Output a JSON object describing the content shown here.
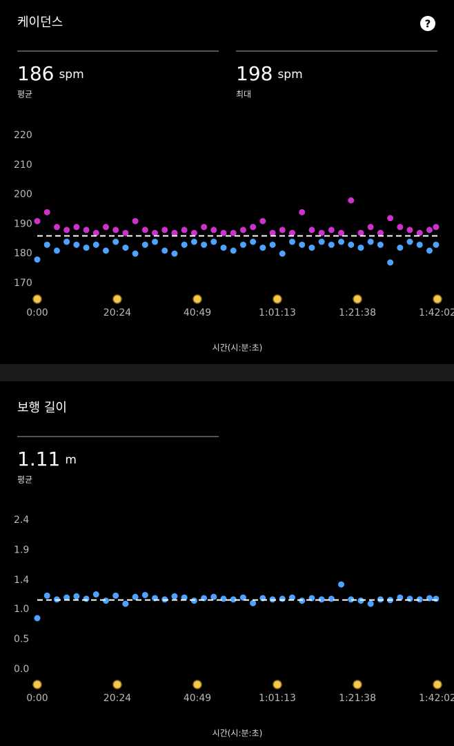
{
  "help_icon": "?",
  "chart_data": [
    {
      "type": "scatter",
      "title": "케이던스",
      "stats": [
        {
          "value": 186,
          "unit": "spm",
          "label": "평균"
        },
        {
          "value": 198,
          "unit": "spm",
          "label": "최대"
        }
      ],
      "average_line": true,
      "xlabel": "시간(시:분:초)",
      "xlim": [
        0,
        6122
      ],
      "xticks": [
        {
          "value": 0,
          "label": "0:00"
        },
        {
          "value": 1224,
          "label": "20:24"
        },
        {
          "value": 2449,
          "label": "40:49"
        },
        {
          "value": 3673,
          "label": "1:01:13"
        },
        {
          "value": 4898,
          "label": "1:21:38"
        },
        {
          "value": 6122,
          "label": "1:42:02"
        }
      ],
      "ylim": [
        167,
        222
      ],
      "yticks": [
        170,
        180,
        190,
        200,
        210,
        220
      ],
      "x": [
        0,
        150,
        300,
        450,
        600,
        750,
        900,
        1050,
        1200,
        1350,
        1500,
        1650,
        1800,
        1950,
        2100,
        2250,
        2400,
        2550,
        2700,
        2850,
        3000,
        3150,
        3300,
        3450,
        3600,
        3750,
        3900,
        4050,
        4200,
        4350,
        4500,
        4650,
        4800,
        4950,
        5100,
        5250,
        5400,
        5550,
        5700,
        5850,
        6000,
        6100
      ],
      "series": [
        {
          "color": "#4da3ff",
          "values": [
            178,
            183,
            181,
            184,
            183,
            182,
            183,
            181,
            184,
            182,
            180,
            183,
            184,
            181,
            180,
            183,
            184,
            183,
            184,
            182,
            181,
            183,
            184,
            182,
            183,
            180,
            184,
            183,
            182,
            184,
            183,
            184,
            183,
            182,
            184,
            183,
            177,
            182,
            184,
            183,
            181,
            183
          ]
        },
        {
          "color": "#cc33cc",
          "values": [
            191,
            194,
            189,
            188,
            189,
            188,
            187,
            189,
            188,
            187,
            191,
            188,
            187,
            188,
            187,
            188,
            187,
            189,
            188,
            187,
            187,
            188,
            189,
            191,
            187,
            188,
            187,
            194,
            188,
            187,
            188,
            187,
            198,
            187,
            189,
            187,
            192,
            189,
            188,
            187,
            188,
            189
          ]
        }
      ]
    },
    {
      "type": "scatter",
      "title": "보행 길이",
      "stats": [
        {
          "value": 1.11,
          "unit": "m",
          "label": "평균"
        }
      ],
      "average_line": true,
      "xlabel": "시간(시:분:초)",
      "xlim": [
        0,
        6122
      ],
      "xticks": [
        {
          "value": 0,
          "label": "0:00"
        },
        {
          "value": 1224,
          "label": "20:24"
        },
        {
          "value": 2449,
          "label": "40:49"
        },
        {
          "value": 3673,
          "label": "1:01:13"
        },
        {
          "value": 4898,
          "label": "1:21:38"
        },
        {
          "value": 6122,
          "label": "1:42:02"
        }
      ],
      "ylim": [
        -0.05,
        2.45
      ],
      "yticks": [
        {
          "value": 0,
          "label": "0.0"
        },
        {
          "value": 0.48,
          "label": "0.5"
        },
        {
          "value": 0.96,
          "label": "1.0"
        },
        {
          "value": 1.43,
          "label": "1.4"
        },
        {
          "value": 1.91,
          "label": "1.9"
        },
        {
          "value": 2.39,
          "label": "2.4"
        }
      ],
      "x": [
        0,
        150,
        300,
        450,
        600,
        750,
        900,
        1050,
        1200,
        1350,
        1500,
        1650,
        1800,
        1950,
        2100,
        2250,
        2400,
        2550,
        2700,
        2850,
        3000,
        3150,
        3300,
        3450,
        3600,
        3750,
        3900,
        4050,
        4200,
        4350,
        4500,
        4650,
        4800,
        4950,
        5100,
        5250,
        5400,
        5550,
        5700,
        5850,
        6000,
        6100
      ],
      "series": [
        {
          "color": "#4da3ff",
          "values": [
            0.82,
            1.18,
            1.12,
            1.15,
            1.17,
            1.13,
            1.2,
            1.1,
            1.18,
            1.05,
            1.16,
            1.19,
            1.14,
            1.12,
            1.17,
            1.15,
            1.1,
            1.14,
            1.16,
            1.13,
            1.12,
            1.15,
            1.06,
            1.14,
            1.12,
            1.13,
            1.15,
            1.1,
            1.14,
            1.12,
            1.13,
            1.36,
            1.12,
            1.1,
            1.05,
            1.12,
            1.11,
            1.15,
            1.13,
            1.12,
            1.14,
            1.13
          ]
        }
      ]
    }
  ]
}
